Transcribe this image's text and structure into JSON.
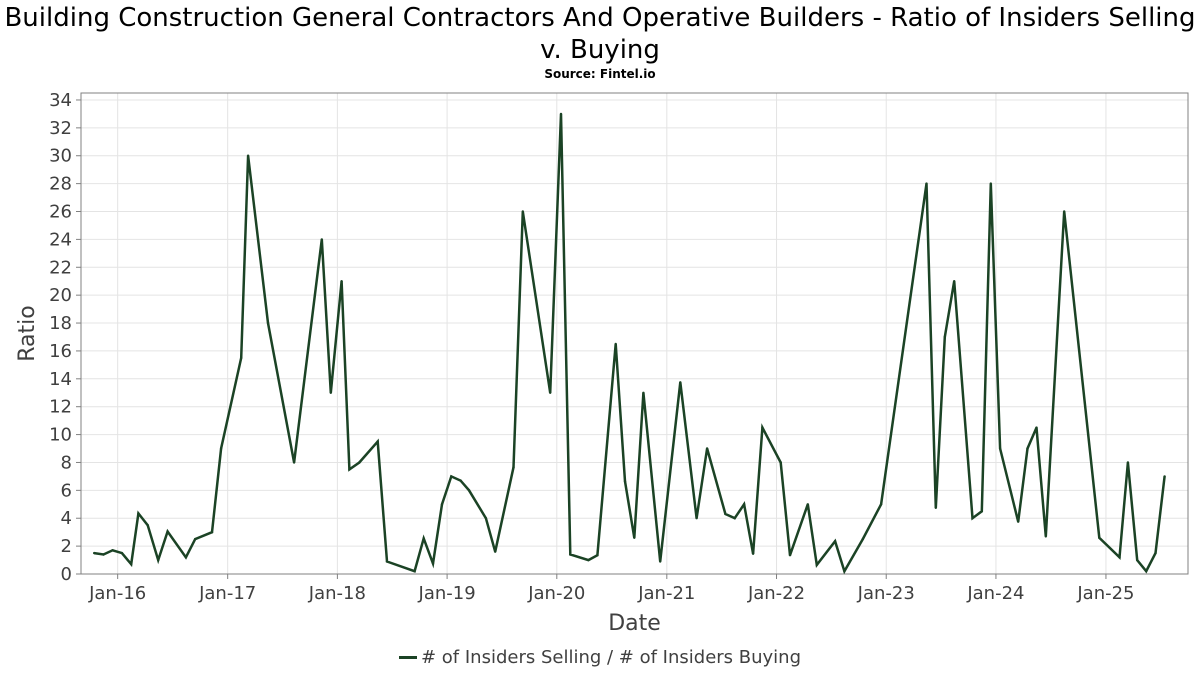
{
  "chart_data": {
    "type": "line",
    "title": "Building Construction General Contractors And Operative Builders - Ratio of Insiders Selling v. Buying",
    "subtitle": "Source: Fintel.io",
    "xlabel": "Date",
    "ylabel": "Ratio",
    "ylim": [
      0,
      34.5
    ],
    "yticks": [
      0,
      2,
      4,
      6,
      8,
      10,
      12,
      14,
      16,
      18,
      20,
      22,
      24,
      26,
      28,
      30,
      32,
      34
    ],
    "xlim": [
      "2015-09-01",
      "2025-10-01"
    ],
    "xticks": [
      {
        "label": "Jan-16",
        "date": "2016-01-01"
      },
      {
        "label": "Jan-17",
        "date": "2017-01-01"
      },
      {
        "label": "Jan-18",
        "date": "2018-01-01"
      },
      {
        "label": "Jan-19",
        "date": "2019-01-01"
      },
      {
        "label": "Jan-20",
        "date": "2020-01-01"
      },
      {
        "label": "Jan-21",
        "date": "2021-01-01"
      },
      {
        "label": "Jan-22",
        "date": "2022-01-01"
      },
      {
        "label": "Jan-23",
        "date": "2023-01-01"
      },
      {
        "label": "Jan-24",
        "date": "2024-01-01"
      },
      {
        "label": "Jan-25",
        "date": "2025-01-01"
      }
    ],
    "grid": true,
    "legend_position": "bottom-center",
    "series": [
      {
        "name": "# of Insiders Selling / # of Insiders Buying",
        "color": "#1b4325",
        "points": [
          [
            "2015-10-15",
            1.5
          ],
          [
            "2015-11-15",
            1.4
          ],
          [
            "2015-12-15",
            1.7
          ],
          [
            "2016-01-15",
            1.5
          ],
          [
            "2016-02-15",
            0.7
          ],
          [
            "2016-03-10",
            4.35
          ],
          [
            "2016-04-10",
            3.5
          ],
          [
            "2016-05-15",
            1.0
          ],
          [
            "2016-06-15",
            3.05
          ],
          [
            "2016-08-15",
            1.2
          ],
          [
            "2016-09-15",
            2.5
          ],
          [
            "2016-11-10",
            3.0
          ],
          [
            "2016-12-10",
            9.0
          ],
          [
            "2017-02-15",
            15.5
          ],
          [
            "2017-03-10",
            30.0
          ],
          [
            "2017-05-15",
            18.0
          ],
          [
            "2017-08-10",
            8.0
          ],
          [
            "2017-11-10",
            24.0
          ],
          [
            "2017-12-10",
            13.0
          ],
          [
            "2018-01-15",
            21.0
          ],
          [
            "2018-02-10",
            7.5
          ],
          [
            "2018-03-15",
            8.0
          ],
          [
            "2018-05-15",
            9.5
          ],
          [
            "2018-06-15",
            0.9
          ],
          [
            "2018-09-15",
            0.2
          ],
          [
            "2018-10-15",
            2.55
          ],
          [
            "2018-11-15",
            0.75
          ],
          [
            "2018-12-15",
            5.0
          ],
          [
            "2019-01-15",
            7.0
          ],
          [
            "2019-02-15",
            6.7
          ],
          [
            "2019-03-15",
            6.0
          ],
          [
            "2019-05-10",
            4.0
          ],
          [
            "2019-06-10",
            1.6
          ],
          [
            "2019-08-10",
            7.65
          ],
          [
            "2019-09-10",
            26.0
          ],
          [
            "2019-12-10",
            13.0
          ],
          [
            "2020-01-15",
            33.0
          ],
          [
            "2020-02-15",
            1.4
          ],
          [
            "2020-04-15",
            1.0
          ],
          [
            "2020-05-15",
            1.35
          ],
          [
            "2020-07-15",
            16.5
          ],
          [
            "2020-08-15",
            6.65
          ],
          [
            "2020-09-15",
            2.6
          ],
          [
            "2020-10-15",
            13.0
          ],
          [
            "2020-12-10",
            0.9
          ],
          [
            "2021-02-15",
            13.75
          ],
          [
            "2021-04-10",
            4.0
          ],
          [
            "2021-05-15",
            9.0
          ],
          [
            "2021-07-15",
            4.3
          ],
          [
            "2021-08-15",
            4.0
          ],
          [
            "2021-09-15",
            5.0
          ],
          [
            "2021-10-15",
            1.45
          ],
          [
            "2021-11-15",
            10.5
          ],
          [
            "2022-01-15",
            8.0
          ],
          [
            "2022-02-15",
            1.35
          ],
          [
            "2022-04-15",
            5.0
          ],
          [
            "2022-05-15",
            0.65
          ],
          [
            "2022-07-15",
            2.35
          ],
          [
            "2022-08-15",
            0.2
          ],
          [
            "2022-10-15",
            2.5
          ],
          [
            "2022-12-15",
            5.0
          ],
          [
            "2023-05-15",
            28.0
          ],
          [
            "2023-06-15",
            4.75
          ],
          [
            "2023-07-15",
            17.0
          ],
          [
            "2023-08-15",
            21.0
          ],
          [
            "2023-10-15",
            4.0
          ],
          [
            "2023-11-15",
            4.5
          ],
          [
            "2023-12-15",
            28.0
          ],
          [
            "2024-01-15",
            9.0
          ],
          [
            "2024-03-15",
            3.75
          ],
          [
            "2024-04-15",
            9.0
          ],
          [
            "2024-05-15",
            10.5
          ],
          [
            "2024-06-15",
            2.7
          ],
          [
            "2024-08-15",
            26.0
          ],
          [
            "2024-12-10",
            2.6
          ],
          [
            "2025-02-15",
            1.2
          ],
          [
            "2025-03-15",
            8.0
          ],
          [
            "2025-04-15",
            1.0
          ],
          [
            "2025-05-15",
            0.2
          ],
          [
            "2025-06-15",
            1.5
          ],
          [
            "2025-07-15",
            7.0
          ]
        ]
      }
    ]
  }
}
